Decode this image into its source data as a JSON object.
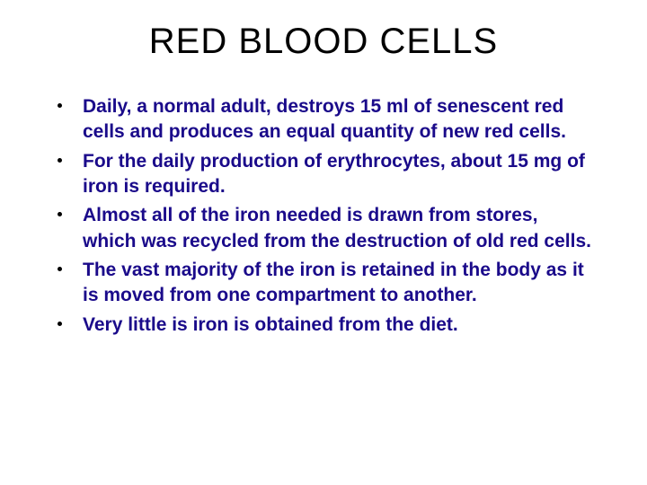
{
  "slide": {
    "title": "RED BLOOD CELLS",
    "title_color": "#000000",
    "title_fontsize": 40,
    "text_color": "#1a0a8a",
    "text_fontsize": 21,
    "background_color": "#ffffff",
    "bullet_color": "#000000",
    "bullets": [
      {
        "text": " Daily,  a normal adult, destroys 15 ml of senescent red cells and produces an equal quantity of new red cells."
      },
      {
        "text": "For the daily production of erythrocytes, about  15 mg of iron is required."
      },
      {
        "text": "Almost all of the iron needed is drawn from stores, which was recycled from the destruction of old red cells."
      },
      {
        "text": "The vast majority of the iron is retained in the body as it is moved from one compartment to another."
      },
      {
        "text": "Very little is iron is obtained from the diet."
      }
    ]
  }
}
